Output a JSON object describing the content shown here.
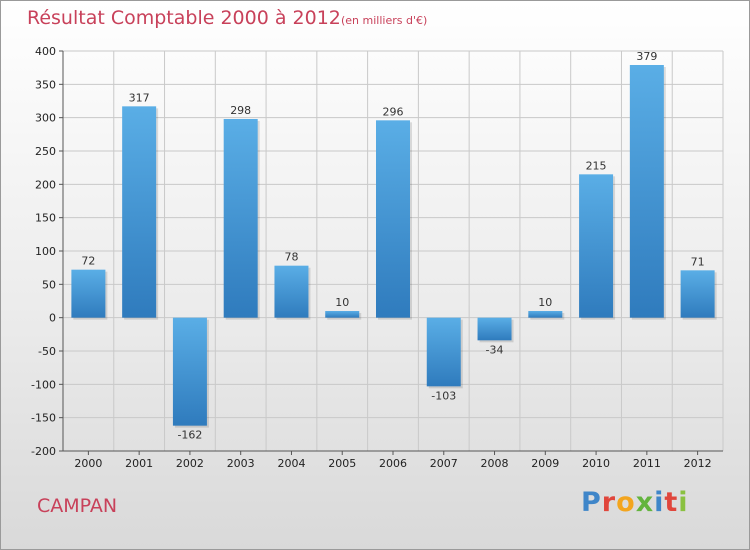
{
  "header": {
    "title": "Résultat Comptable 2000 à 2012",
    "subtitle": "(en milliers d'€)"
  },
  "footer": {
    "place": "CAMPAN",
    "logo_letters": [
      {
        "ch": "P",
        "color": "#3f86c9"
      },
      {
        "ch": "r",
        "color": "#e0463c"
      },
      {
        "ch": "o",
        "color": "#f3a51e"
      },
      {
        "ch": "x",
        "color": "#63b43e"
      },
      {
        "ch": "i",
        "color": "#3f86c9"
      },
      {
        "ch": "t",
        "color": "#e0463c"
      },
      {
        "ch": "i",
        "color": "#8ac140"
      }
    ]
  },
  "chart_data": {
    "type": "bar",
    "title": "Résultat Comptable 2000 à 2012",
    "subtitle": "(en milliers d'€)",
    "categories": [
      "2000",
      "2001",
      "2002",
      "2003",
      "2004",
      "2005",
      "2006",
      "2007",
      "2008",
      "2009",
      "2010",
      "2011",
      "2012"
    ],
    "values": [
      72,
      317,
      -162,
      298,
      78,
      10,
      296,
      -103,
      -34,
      10,
      215,
      379,
      71
    ],
    "data_labels": [
      "72",
      "317",
      "-162",
      "298",
      "78",
      "10",
      "296",
      "-103",
      "-34",
      "10",
      "215",
      "379",
      "71"
    ],
    "ylim": [
      -200,
      400
    ],
    "yticks": [
      -200,
      -150,
      -100,
      -50,
      0,
      50,
      100,
      150,
      200,
      250,
      300,
      350,
      400
    ],
    "grid": true,
    "bar_color_light": "#5aaee6",
    "bar_color_dark": "#2f7bbd",
    "grid_color": "#c9c9c9"
  }
}
